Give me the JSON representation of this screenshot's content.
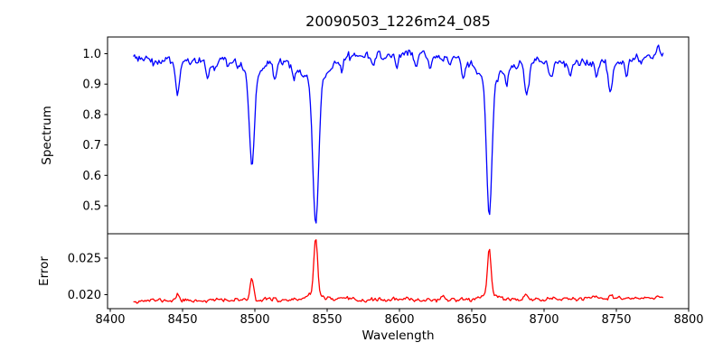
{
  "figure": {
    "title": "20090503_1226m24_085",
    "background": "#ffffff",
    "text_color": "#000000",
    "spine_color": "#000000"
  },
  "axes": {
    "xlabel": "Wavelength",
    "xlim": [
      8398,
      8800
    ],
    "x_tick_values": [
      8400,
      8450,
      8500,
      8550,
      8600,
      8650,
      8700,
      8750,
      8800
    ],
    "x_tick_labels": [
      "8400",
      "8450",
      "8500",
      "8550",
      "8600",
      "8650",
      "8700",
      "8750",
      "8800"
    ],
    "grid": false,
    "legend": "none"
  },
  "chart_data": [
    {
      "type": "line",
      "name": "spectrum",
      "title": "20090503_1226m24_085",
      "ylabel": "Spectrum",
      "line_color": "#0000ff",
      "ylim": [
        0.408,
        1.055
      ],
      "y_tick_values": [
        1.0,
        0.9,
        0.8,
        0.7,
        0.6,
        0.5
      ],
      "y_tick_labels": [
        "1.0",
        "0.9",
        "0.8",
        "0.7",
        "0.6",
        "0.5"
      ],
      "x_data_range": [
        8416,
        8783
      ],
      "x_step": 0.8,
      "noise_sigma": 0.0075,
      "noise_seed": 3,
      "continuum_anchors": [
        [
          8416,
          0.985
        ],
        [
          8445,
          0.98
        ],
        [
          8470,
          0.972
        ],
        [
          8490,
          0.978
        ],
        [
          8512,
          0.975
        ],
        [
          8540,
          0.985
        ],
        [
          8565,
          0.99
        ],
        [
          8590,
          1.0
        ],
        [
          8612,
          1.0
        ],
        [
          8635,
          0.985
        ],
        [
          8655,
          0.975
        ],
        [
          8680,
          0.968
        ],
        [
          8705,
          0.973
        ],
        [
          8730,
          0.968
        ],
        [
          8745,
          0.965
        ],
        [
          8765,
          0.985
        ],
        [
          8783,
          1.01
        ]
      ],
      "absorption_lines": [
        [
          8446.5,
          0.115,
          1.2
        ],
        [
          8467.5,
          0.05,
          1.0
        ],
        [
          8498.0,
          0.3,
          1.7
        ],
        [
          8498.0,
          0.05,
          6.0
        ],
        [
          8514.0,
          0.06,
          1.2
        ],
        [
          8527.0,
          0.04,
          1.0
        ],
        [
          8542.1,
          0.475,
          2.0
        ],
        [
          8542.1,
          0.07,
          9.0
        ],
        [
          8560.0,
          0.035,
          1.0
        ],
        [
          8582.0,
          0.045,
          1.1
        ],
        [
          8598.0,
          0.05,
          1.1
        ],
        [
          8611.5,
          0.045,
          1.0
        ],
        [
          8621.0,
          0.05,
          1.1
        ],
        [
          8644.0,
          0.055,
          1.3
        ],
        [
          8662.1,
          0.44,
          1.8
        ],
        [
          8662.1,
          0.065,
          8.0
        ],
        [
          8674.0,
          0.05,
          1.2
        ],
        [
          8688.0,
          0.095,
          1.4
        ],
        [
          8705.0,
          0.05,
          1.1
        ],
        [
          8718.0,
          0.04,
          1.0
        ],
        [
          8736.0,
          0.045,
          1.0
        ],
        [
          8746.0,
          0.1,
          1.3
        ],
        [
          8757.0,
          0.05,
          1.0
        ]
      ],
      "main_features": [
        {
          "id": "Ca II 8498",
          "wavelength": 8498,
          "min_flux": 0.63
        },
        {
          "id": "Ca II 8542",
          "wavelength": 8542,
          "min_flux": 0.44
        },
        {
          "id": "Ca II 8662",
          "wavelength": 8662,
          "min_flux": 0.47
        }
      ]
    },
    {
      "type": "line",
      "name": "error",
      "ylabel": "Error",
      "xlabel": "Wavelength",
      "line_color": "#ff0000",
      "ylim": [
        0.0181,
        0.0284
      ],
      "y_tick_values": [
        0.025,
        0.02
      ],
      "y_tick_labels": [
        "0.025",
        "0.020"
      ],
      "x_data_range": [
        8416,
        8783
      ],
      "x_step": 0.8,
      "noise_sigma": 0.00013,
      "noise_seed": 11,
      "baseline_anchors": [
        [
          8416,
          0.0192
        ],
        [
          8600,
          0.0193
        ],
        [
          8700,
          0.0194
        ],
        [
          8783,
          0.0195
        ]
      ],
      "emission_peaks": [
        [
          8446.5,
          0.0009,
          1.0
        ],
        [
          8498.0,
          0.0033,
          1.2
        ],
        [
          8514.0,
          0.0004,
          1.0
        ],
        [
          8542.1,
          0.0078,
          1.3
        ],
        [
          8542.1,
          0.0007,
          5.0
        ],
        [
          8662.1,
          0.0065,
          1.2
        ],
        [
          8662.1,
          0.0007,
          5.0
        ],
        [
          8688.0,
          0.0005,
          1.2
        ],
        [
          8746.0,
          0.0006,
          1.3
        ]
      ],
      "main_features": [
        {
          "wavelength": 8498,
          "max_error": 0.0226
        },
        {
          "wavelength": 8542,
          "max_error": 0.0278
        },
        {
          "wavelength": 8662,
          "max_error": 0.0266
        }
      ]
    }
  ]
}
